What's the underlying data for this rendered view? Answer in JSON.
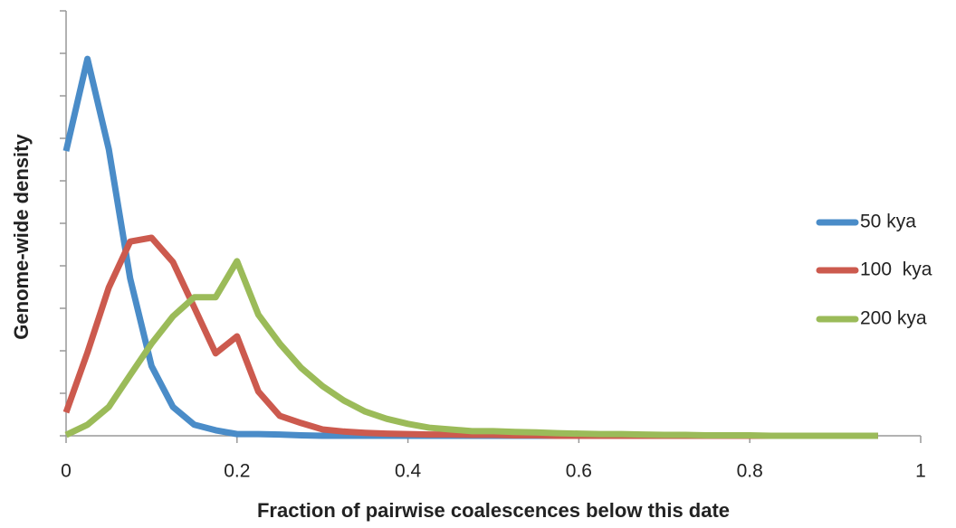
{
  "chart_data": {
    "type": "line",
    "xlabel": "Fraction of pairwise coalescences below this date",
    "ylabel": "Genome-wide density",
    "x": [
      0,
      0.025,
      0.05,
      0.075,
      0.1,
      0.125,
      0.15,
      0.175,
      0.2,
      0.225,
      0.25,
      0.275,
      0.3,
      0.325,
      0.35,
      0.375,
      0.4,
      0.425,
      0.45,
      0.475,
      0.5,
      0.525,
      0.55,
      0.575,
      0.6,
      0.625,
      0.65,
      0.675,
      0.7,
      0.725,
      0.75,
      0.775,
      0.8,
      0.825,
      0.85,
      0.875,
      0.9,
      0.925,
      0.95
    ],
    "series": [
      {
        "name": "50 kya",
        "color": "#4a8cc8",
        "values": [
          6.7,
          8.87,
          6.74,
          3.7,
          1.64,
          0.68,
          0.26,
          0.13,
          0.04,
          0.04,
          0.03,
          0.01,
          0,
          0,
          0,
          0,
          0,
          0,
          0,
          0,
          0,
          0,
          0,
          0,
          0,
          0,
          0,
          0,
          0,
          0,
          0,
          0,
          0,
          0,
          0,
          0,
          0,
          0,
          0
        ]
      },
      {
        "name": "100  kya",
        "color": "#cc5a4e",
        "values": [
          0.55,
          1.96,
          3.49,
          4.57,
          4.66,
          4.09,
          3.02,
          1.94,
          2.34,
          1.04,
          0.47,
          0.3,
          0.15,
          0.1,
          0.07,
          0.05,
          0.04,
          0.03,
          0.03,
          0.02,
          0.02,
          0.01,
          0.01,
          0,
          0,
          0,
          0,
          0,
          0,
          0,
          0,
          0,
          0,
          0,
          0,
          0,
          0,
          0,
          0
        ]
      },
      {
        "name": "200 kya",
        "color": "#9bbb59",
        "values": [
          0.02,
          0.26,
          0.68,
          1.43,
          2.17,
          2.81,
          3.26,
          3.26,
          4.11,
          2.85,
          2.17,
          1.6,
          1.17,
          0.83,
          0.57,
          0.4,
          0.28,
          0.19,
          0.15,
          0.11,
          0.11,
          0.09,
          0.08,
          0.06,
          0.05,
          0.04,
          0.04,
          0.03,
          0.02,
          0.02,
          0.01,
          0.01,
          0.01,
          0,
          0,
          0,
          0,
          0,
          0
        ]
      }
    ],
    "xlim": [
      0,
      1
    ],
    "xticks": [
      0,
      0.2,
      0.4,
      0.6,
      0.8,
      1
    ],
    "ylim": [
      0,
      10
    ],
    "yticks": [
      0,
      1,
      2,
      3,
      4,
      5,
      6,
      7,
      8,
      9,
      10
    ],
    "legend": "right"
  }
}
